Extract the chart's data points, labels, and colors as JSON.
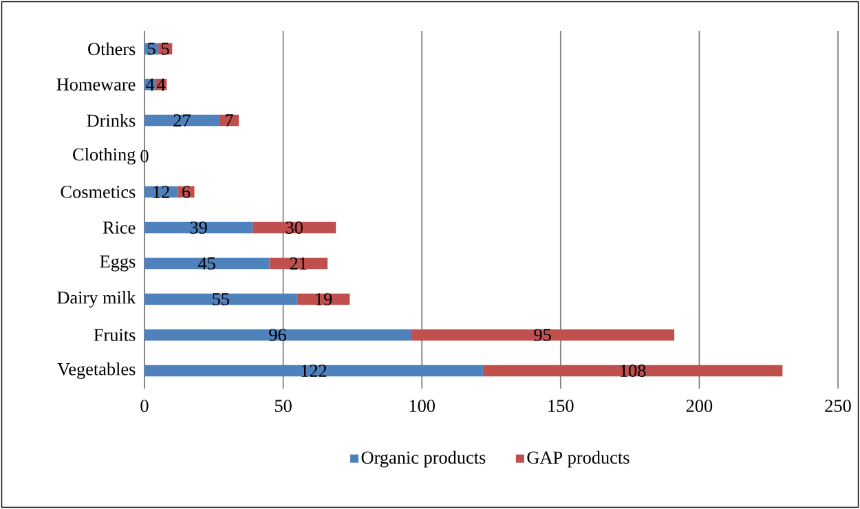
{
  "chart_data": {
    "type": "bar",
    "orientation": "horizontal",
    "stacked": true,
    "categories": [
      "Others",
      "Homeware",
      "Drinks",
      "Clothing",
      "Cosmetics",
      "Rice",
      "Eggs",
      "Dairy milk",
      "Fruits",
      "Vegetables"
    ],
    "series": [
      {
        "name": "Organic products",
        "color": "#4f81bd",
        "values": [
          5,
          4,
          27,
          0,
          12,
          39,
          45,
          55,
          96,
          122
        ],
        "value_labels": [
          "5",
          "4",
          "27",
          "0",
          "12",
          "39",
          "45",
          "55",
          "96",
          "122"
        ]
      },
      {
        "name": "GAP products",
        "color": "#c0504d",
        "values": [
          5,
          4,
          7,
          0,
          6,
          30,
          21,
          19,
          95,
          108
        ],
        "value_labels": [
          "5",
          "4",
          "7",
          null,
          "6",
          "30",
          "21",
          "19",
          "95",
          "108"
        ]
      }
    ],
    "xlim": [
      0,
      250
    ],
    "xticks": [
      0,
      50,
      100,
      150,
      200,
      250
    ],
    "grid": "x",
    "legend": "bottom"
  }
}
